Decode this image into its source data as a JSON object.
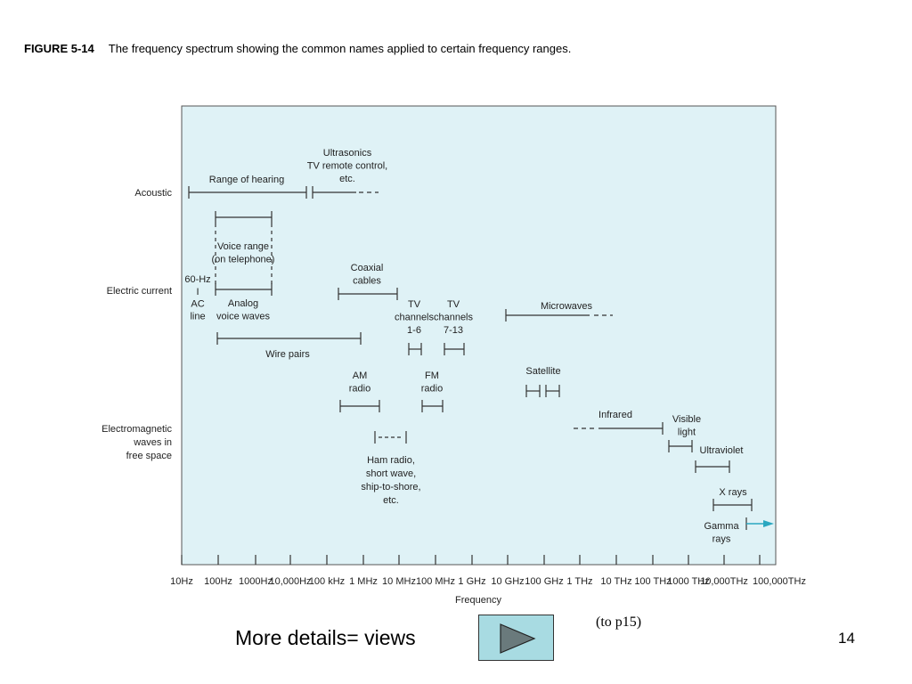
{
  "caption": {
    "figure_label": "FIGURE 5-14",
    "text": "The frequency spectrum showing the common names applied to certain frequency ranges."
  },
  "diagram": {
    "panel_color": "#dff2f6",
    "arrow_color": "#2aa7c0",
    "row_labels": {
      "acoustic": "Acoustic",
      "electric": "Electric current",
      "em": [
        "Electromagnetic",
        "waves in",
        "free space"
      ]
    },
    "x_axis": {
      "label": "Frequency",
      "ticks": [
        "10Hz",
        "100Hz",
        "1000Hz",
        "10,000Hz",
        "100 kHz",
        "1 MHz",
        "10 MHz",
        "100 MHz",
        "1 GHz",
        "10 GHz",
        "100 GHz",
        "1 THz",
        "10 THz",
        "100 THz",
        "1000 THz",
        "10,000THz",
        "100,000THz"
      ]
    },
    "labels": {
      "range_of_hearing": "Range of hearing",
      "ultrasonics": [
        "Ultrasonics",
        "TV remote control,",
        "etc."
      ],
      "voice_range": [
        "Voice range",
        "(on telephone)"
      ],
      "ac_line": [
        "60-Hz",
        "I",
        "AC",
        "line"
      ],
      "analog_voice": [
        "Analog",
        "voice waves"
      ],
      "coaxial": [
        "Coaxial",
        "cables"
      ],
      "tv_1_6": [
        "TV",
        "channels",
        "1-6"
      ],
      "tv_7_13": [
        "TV",
        "channels",
        "7-13"
      ],
      "microwaves": "Microwaves",
      "wire_pairs": "Wire pairs",
      "am_radio": [
        "AM",
        "radio"
      ],
      "fm_radio": [
        "FM",
        "radio"
      ],
      "satellite": "Satellite",
      "infrared": "Infrared",
      "visible_light": [
        "Visible",
        "light"
      ],
      "ultraviolet": "Ultraviolet",
      "ham_radio": [
        "Ham radio,",
        "short wave,",
        "ship-to-shore,",
        "etc."
      ],
      "x_rays": "X rays",
      "gamma_rays": [
        "Gamma",
        "rays"
      ]
    }
  },
  "footer": {
    "details": "More details= views",
    "to_page": "(to p15)",
    "page_number": "14"
  }
}
